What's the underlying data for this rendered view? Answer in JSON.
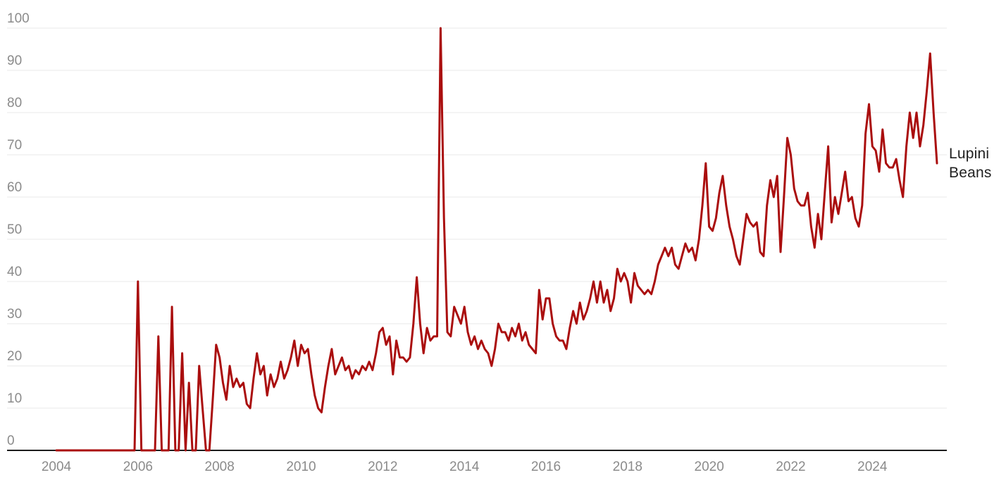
{
  "page": {
    "background_color": "#ffffff"
  },
  "chart_data": {
    "type": "line",
    "title": "",
    "xlabel": "",
    "ylabel": "",
    "grid": "horizontal-only",
    "ylim": [
      0,
      100
    ],
    "x_range": [
      "2004-01",
      "2025-08"
    ],
    "frequency": "monthly",
    "legend_position": "right-of-line-end",
    "colors": {
      "line": "#aa0e0e",
      "gridline": "#e9e9e9",
      "axis_baseline": "#1c1c1c",
      "tick_label": "#8b8b8b",
      "series_label": "#212121"
    },
    "y_ticks": [
      {
        "label": "0",
        "value": 0
      },
      {
        "label": "10",
        "value": 10
      },
      {
        "label": "20",
        "value": 20
      },
      {
        "label": "30",
        "value": 30
      },
      {
        "label": "40",
        "value": 40
      },
      {
        "label": "50",
        "value": 50
      },
      {
        "label": "60",
        "value": 60
      },
      {
        "label": "70",
        "value": 70
      },
      {
        "label": "80",
        "value": 80
      },
      {
        "label": "90",
        "value": 90
      },
      {
        "label": "100",
        "value": 100
      }
    ],
    "x_ticks": [
      {
        "label": "2004",
        "month_index": 0
      },
      {
        "label": "2006",
        "month_index": 24
      },
      {
        "label": "2008",
        "month_index": 48
      },
      {
        "label": "2010",
        "month_index": 72
      },
      {
        "label": "2012",
        "month_index": 96
      },
      {
        "label": "2014",
        "month_index": 120
      },
      {
        "label": "2016",
        "month_index": 144
      },
      {
        "label": "2018",
        "month_index": 168
      },
      {
        "label": "2020",
        "month_index": 192
      },
      {
        "label": "2022",
        "month_index": 216
      },
      {
        "label": "2024",
        "month_index": 240
      }
    ],
    "series": [
      {
        "name": "Lupini Beans",
        "color": "#aa0e0e",
        "start": "2004-01",
        "values": [
          0,
          0,
          0,
          0,
          0,
          0,
          0,
          0,
          0,
          0,
          0,
          0,
          0,
          0,
          0,
          0,
          0,
          0,
          0,
          0,
          0,
          0,
          0,
          0,
          40,
          0,
          0,
          0,
          0,
          0,
          27,
          0,
          0,
          0,
          34,
          0,
          0,
          23,
          0,
          16,
          0,
          0,
          20,
          10,
          0,
          0,
          12,
          25,
          22,
          16,
          12,
          20,
          15,
          17,
          15,
          16,
          11,
          10,
          17,
          23,
          18,
          20,
          13,
          18,
          15,
          17,
          21,
          17,
          19,
          22,
          26,
          20,
          25,
          23,
          24,
          18,
          13,
          10,
          9,
          15,
          20,
          24,
          18,
          20,
          22,
          19,
          20,
          17,
          19,
          18,
          20,
          19,
          21,
          19,
          23,
          28,
          29,
          25,
          27,
          18,
          26,
          22,
          22,
          21,
          22,
          30,
          41,
          30,
          23,
          29,
          26,
          27,
          27,
          100,
          55,
          28,
          27,
          34,
          32,
          30,
          34,
          28,
          25,
          27,
          24,
          26,
          24,
          23,
          20,
          24,
          30,
          28,
          28,
          26,
          29,
          27,
          30,
          26,
          28,
          25,
          24,
          23,
          38,
          31,
          36,
          36,
          30,
          27,
          26,
          26,
          24,
          29,
          33,
          30,
          35,
          31,
          33,
          36,
          40,
          35,
          40,
          35,
          38,
          33,
          36,
          43,
          40,
          42,
          40,
          35,
          42,
          39,
          38,
          37,
          38,
          37,
          40,
          44,
          46,
          48,
          46,
          48,
          44,
          43,
          46,
          49,
          47,
          48,
          45,
          50,
          58,
          68,
          53,
          52,
          55,
          61,
          65,
          58,
          53,
          50,
          46,
          44,
          50,
          56,
          54,
          53,
          54,
          47,
          46,
          58,
          64,
          60,
          65,
          47,
          60,
          74,
          70,
          62,
          59,
          58,
          58,
          61,
          53,
          48,
          56,
          50,
          61,
          72,
          54,
          60,
          56,
          61,
          66,
          59,
          60,
          55,
          53,
          58,
          75,
          82,
          72,
          71,
          66,
          76,
          68,
          67,
          67,
          69,
          64,
          60,
          72,
          80,
          74,
          80,
          72,
          77,
          85,
          94,
          80,
          68
        ]
      }
    ]
  }
}
